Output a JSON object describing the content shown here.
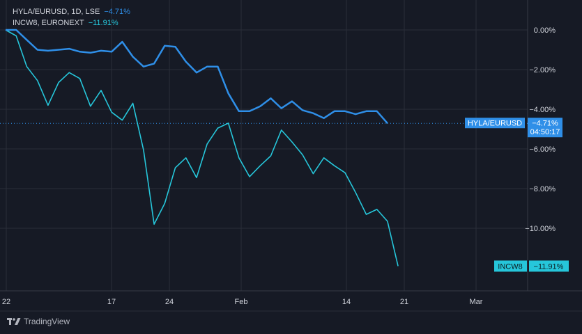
{
  "legend": [
    {
      "label": "HYLA/EURUSD, 1D, LSE",
      "change": "−4.71%",
      "color": "#2f8fe8"
    },
    {
      "label": "INCW8, EURONEXT",
      "change": "−11.91%",
      "color": "#26c6da"
    }
  ],
  "price_tags": {
    "hyla": {
      "name": "HYLA/EURUSD",
      "value": "−4.71%",
      "countdown": "04:50:17"
    },
    "incw8": {
      "name": "INCW8",
      "value": "−11.91%"
    }
  },
  "branding": "TradingView",
  "colors": {
    "background": "#161a25",
    "grid": "#2a2e39",
    "hyla": "#2f8fe8",
    "incw8": "#26c6da",
    "text": "#d1d4dc",
    "axis_text": "#b2b5be"
  },
  "chart_data": {
    "type": "line",
    "title": "",
    "y_unit": "%",
    "ylim": [
      -12.5,
      0.5
    ],
    "y_ticks": [
      "0.00%",
      "−2.00%",
      "−4.00%",
      "−6.00%",
      "−8.00%",
      "−10.00%"
    ],
    "y_tick_values": [
      0,
      -2,
      -4,
      -6,
      -8,
      -10
    ],
    "x_ticks": [
      "22",
      "17",
      "24",
      "Feb",
      "14",
      "21",
      "Mar"
    ],
    "x_tick_dates": [
      "2019-12-22",
      "2020-01-17",
      "2020-01-24",
      "2020-02-01",
      "2020-02-14",
      "2020-02-21",
      "2020-03-01"
    ],
    "grid": true,
    "x": [
      "2019-12-22",
      "2019-12-24",
      "2020-01-02",
      "2020-01-03",
      "2020-01-06",
      "2020-01-07",
      "2020-01-08",
      "2020-01-09",
      "2020-01-10",
      "2020-01-13",
      "2020-01-14",
      "2020-01-15",
      "2020-01-16",
      "2020-01-17",
      "2020-01-20",
      "2020-01-21",
      "2020-01-22",
      "2020-01-23",
      "2020-01-24",
      "2020-01-27",
      "2020-01-28",
      "2020-01-29",
      "2020-01-30",
      "2020-01-31",
      "2020-02-03",
      "2020-02-04",
      "2020-02-05",
      "2020-02-06",
      "2020-02-07",
      "2020-02-10",
      "2020-02-11",
      "2020-02-12",
      "2020-02-13",
      "2020-02-14",
      "2020-02-17",
      "2020-02-18",
      "2020-02-19",
      "2020-02-20",
      "2020-02-21",
      "2020-02-24",
      "2020-02-25",
      "2020-02-26"
    ],
    "series": [
      {
        "name": "HYLA/EURUSD",
        "color": "#2f8fe8",
        "values": [
          0.0,
          0.0,
          -0.5,
          -1.0,
          -1.05,
          -1.0,
          -0.95,
          -1.1,
          -1.15,
          -1.05,
          -1.1,
          -0.6,
          -1.35,
          -1.85,
          -1.7,
          -0.8,
          -0.85,
          -1.6,
          -2.15,
          -1.85,
          -1.85,
          -3.2,
          -4.1,
          -4.1,
          -3.85,
          -3.45,
          -3.95,
          -3.6,
          -4.05,
          -4.2,
          -4.45,
          -4.1,
          -4.1,
          -4.25,
          -4.1,
          -4.1,
          -4.71,
          -4.71,
          -4.71,
          -4.71,
          -4.71,
          -4.71
        ]
      },
      {
        "name": "INCW8",
        "color": "#26c6da",
        "values": [
          0.0,
          -0.3,
          -1.85,
          -2.55,
          -3.8,
          -2.65,
          -2.15,
          -2.45,
          -3.85,
          -3.05,
          -4.15,
          -4.55,
          -3.7,
          -6.05,
          -9.8,
          -8.75,
          -6.95,
          -6.45,
          -7.45,
          -5.75,
          -4.95,
          -4.7,
          -6.45,
          -7.4,
          -6.85,
          -6.35,
          -5.05,
          -5.65,
          -6.3,
          -7.25,
          -6.45,
          -6.85,
          -7.2,
          -8.2,
          -9.3,
          -9.05,
          -9.65,
          -11.91,
          -11.91,
          -11.91,
          -11.91,
          -11.91
        ]
      }
    ]
  }
}
